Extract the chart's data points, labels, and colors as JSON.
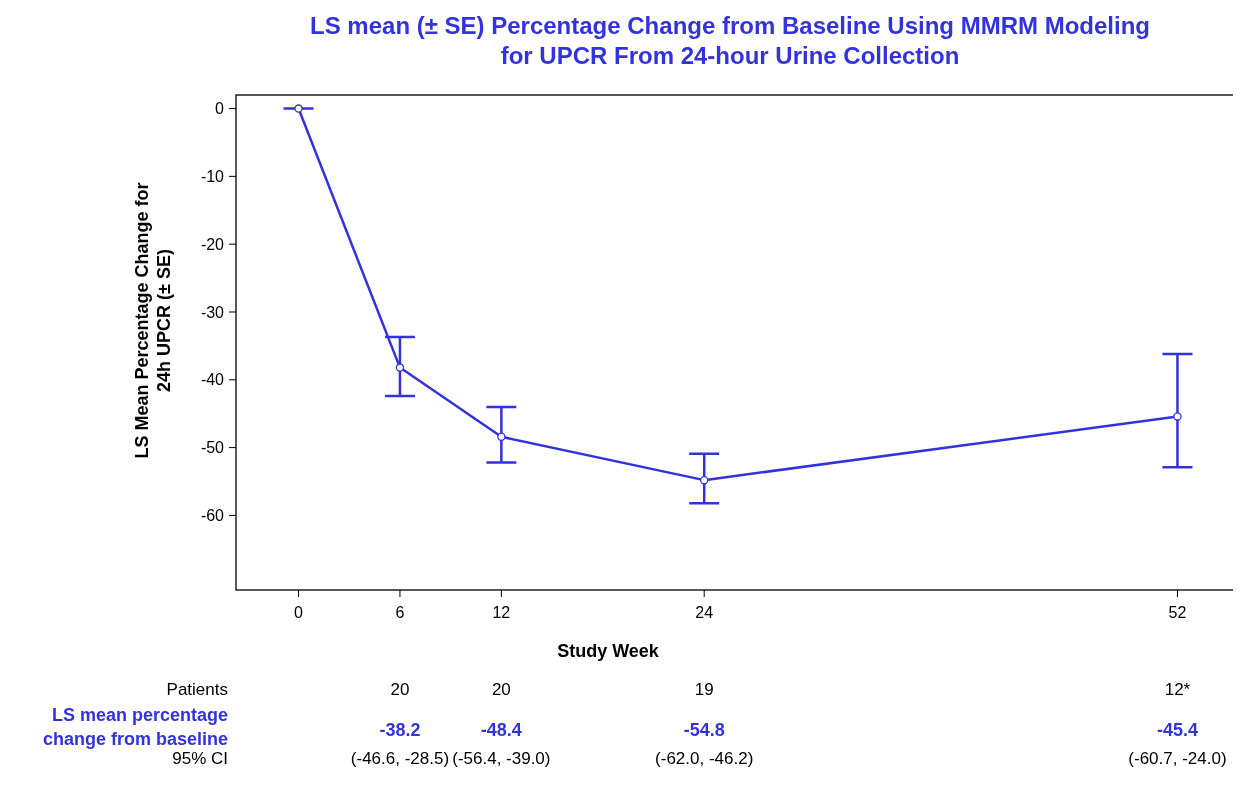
{
  "chart_data": {
    "type": "line",
    "title": "LS mean (± SE) Percentage Change from Baseline Using MMRM Modeling\nfor UPCR From 24-hour Urine Collection",
    "xlabel": "Study Week",
    "ylabel": "LS Mean Percentage Change for\n24h UPCR (± SE)",
    "x": [
      0,
      6,
      12,
      24,
      52
    ],
    "series": [
      {
        "color": "#3333dd",
        "values": [
          0,
          -38.2,
          -48.4,
          -54.8,
          -45.4
        ],
        "errors": [
          [
            0,
            0
          ],
          [
            -42.4,
            -33.7
          ],
          [
            -52.2,
            -44.0
          ],
          [
            -58.2,
            -50.9
          ],
          [
            -52.9,
            -36.2
          ]
        ]
      }
    ],
    "xlim": [
      -3.7,
      55.7
    ],
    "xticks": [
      0,
      6,
      12,
      24,
      52
    ],
    "ylim": [
      -71,
      2
    ],
    "yticks": [
      0,
      -10,
      -20,
      -30,
      -40,
      -50,
      -60
    ],
    "marker": "circle",
    "line_style": "solid",
    "grid": false,
    "annotations": [
      "Patients",
      "20",
      "20",
      "19",
      "12*",
      "LS mean percentage change from baseline",
      "-38.2",
      "-48.4",
      "-54.8",
      "-45.4",
      "95% CI",
      "(-46.6, -28.5)",
      "(-56.4, -39.0)",
      "(-62.0, -46.2)",
      "(-60.7, -24.0)"
    ]
  }
}
